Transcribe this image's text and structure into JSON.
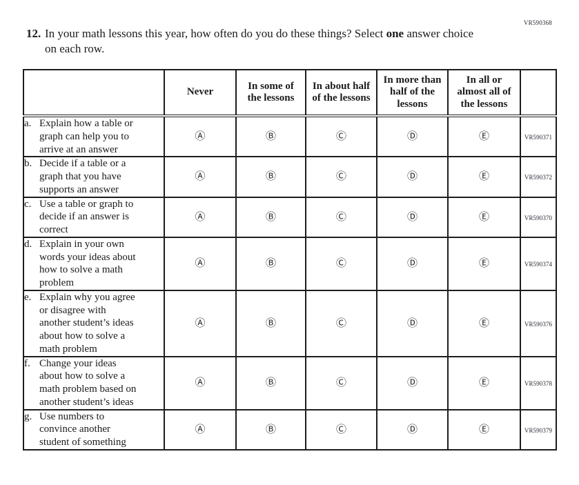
{
  "page": {
    "top_code": "VR590368"
  },
  "question": {
    "number": "12.",
    "text_before": "In your math lessons this year, how often do you do these things? Select ",
    "text_bold": "one",
    "text_after": " answer choice on each row."
  },
  "table": {
    "headers": [
      "Never",
      "In some of the lessons",
      "In about half of the lessons",
      "In more than half of the lessons",
      "In all or almost all of the lessons"
    ],
    "options": [
      "Ⓐ",
      "Ⓑ",
      "Ⓒ",
      "Ⓓ",
      "Ⓔ"
    ],
    "rows": [
      {
        "letter": "a.",
        "label": "Explain how a table or graph can help you to arrive at an answer",
        "code": "VR590371"
      },
      {
        "letter": "b.",
        "label": "Decide if a table or a graph that you have supports an answer",
        "code": "VR590372"
      },
      {
        "letter": "c.",
        "label": "Use a table or graph to decide if an answer is correct",
        "code": "VR590370"
      },
      {
        "letter": "d.",
        "label": "Explain in your own words your ideas about how to solve a math problem",
        "code": "VR590374"
      },
      {
        "letter": "e.",
        "label": "Explain why you agree or disagree with another student’s ideas about how to solve a math problem",
        "code": "VR590376"
      },
      {
        "letter": "f.",
        "label": "Change your ideas about how to solve a math problem based on another student’s ideas",
        "code": "VR590378"
      },
      {
        "letter": "g.",
        "label": "Use numbers to convince another student of something",
        "code": "VR590379"
      }
    ]
  }
}
